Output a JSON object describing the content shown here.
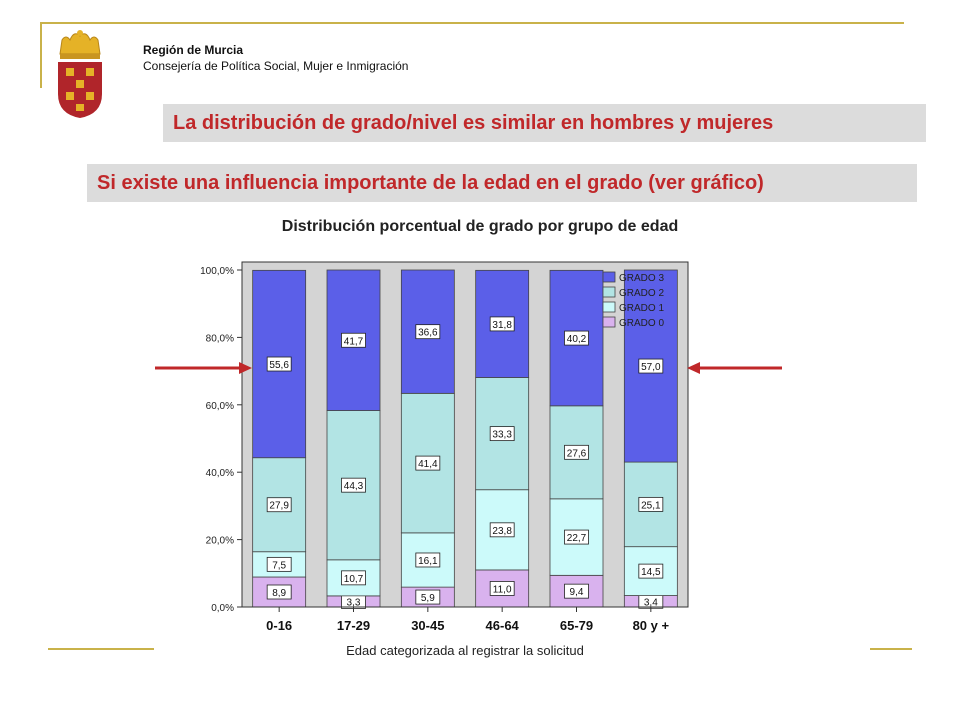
{
  "header": {
    "org_name": "Región de Murcia",
    "org_dept": "Consejería de Política Social, Mujer e Inmigración"
  },
  "banners": {
    "line1": "La distribución de grado/nivel es similar en hombres y mujeres",
    "line2": "Si existe una influencia importante de la edad en el grado (ver gráfico)"
  },
  "colors": {
    "accent": "#c0282a",
    "frame": "#c9b24a",
    "banner_bg": "#dcdcdc"
  },
  "chart_data": {
    "type": "bar",
    "stacked": true,
    "title": "Distribución porcentual de grado por grupo de edad",
    "xlabel": "Edad categorizada al registrar la solicitud",
    "ylabel": "",
    "ylim": [
      0,
      100
    ],
    "yticks": [
      "0,0%",
      "20,0%",
      "40,0%",
      "60,0%",
      "80,0%",
      "100,0%"
    ],
    "categories": [
      "0-16",
      "17-29",
      "30-45",
      "46-64",
      "65-79",
      "80 y +"
    ],
    "series": [
      {
        "name": "GRADO 0",
        "color": "#d9b2ee",
        "values": [
          8.9,
          3.3,
          5.9,
          11.0,
          9.4,
          3.4
        ],
        "labels": [
          "8,9",
          "3,3",
          "5,9",
          "11,0",
          "9,4",
          "3,4"
        ]
      },
      {
        "name": "GRADO 1",
        "color": "#ccfafa",
        "values": [
          7.5,
          10.7,
          16.1,
          23.8,
          22.7,
          14.5
        ],
        "labels": [
          "7,5",
          "10,7",
          "16,1",
          "23,8",
          "22,7",
          "14,5"
        ]
      },
      {
        "name": "GRADO 2",
        "color": "#b2e4e4",
        "values": [
          27.9,
          44.3,
          41.4,
          33.3,
          27.6,
          25.1
        ],
        "labels": [
          "27,9",
          "44,3",
          "41,4",
          "33,3",
          "27,6",
          "25,1"
        ]
      },
      {
        "name": "GRADO 3",
        "color": "#5b5fe8",
        "values": [
          55.6,
          41.7,
          36.6,
          31.8,
          40.2,
          57.0
        ],
        "labels": [
          "55,6",
          "41,7",
          "36,6",
          "31,8",
          "40,2",
          "57,0"
        ]
      }
    ],
    "legend_order": [
      "GRADO 3",
      "GRADO 2",
      "GRADO 1",
      "GRADO 0"
    ],
    "legend_position": "top-right",
    "plot_background": "#d4d4d4",
    "grid": false
  },
  "annotations": {
    "arrow_color": "#c0282a",
    "arrows": [
      "left-arrow pointing right at 0-16 bar",
      "right-arrow pointing left at 80 y + bar"
    ]
  }
}
